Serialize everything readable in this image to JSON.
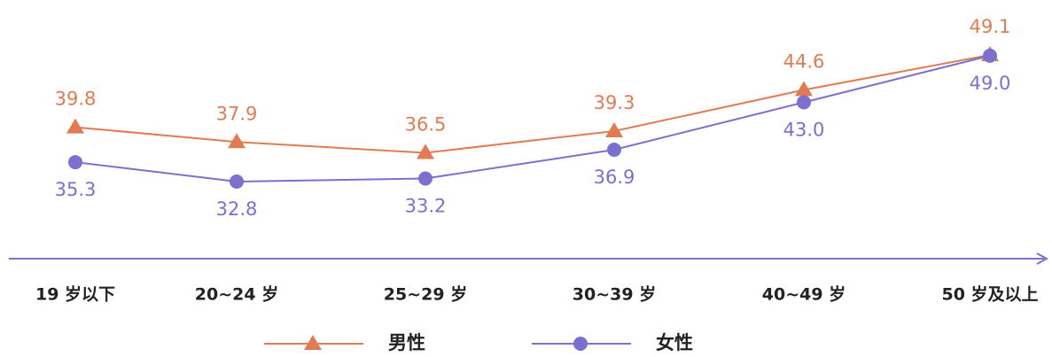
{
  "chart_data": {
    "type": "line",
    "categories": [
      "19 岁以下",
      "20~24 岁",
      "25~29 岁",
      "30~39 岁",
      "40~49 岁",
      "50 岁及以上"
    ],
    "series": [
      {
        "name": "男性",
        "color": "#e07b54",
        "marker": "triangle",
        "values": [
          39.8,
          37.9,
          36.5,
          39.3,
          44.6,
          49.1
        ],
        "value_labels": [
          "39.8",
          "37.9",
          "36.5",
          "39.3",
          "44.6",
          "49.1"
        ]
      },
      {
        "name": "女性",
        "color": "#7b6fd0",
        "marker": "circle",
        "values": [
          35.3,
          32.8,
          33.2,
          36.9,
          43.0,
          49.0
        ],
        "value_labels": [
          "35.3",
          "32.8",
          "33.2",
          "36.9",
          "43.0",
          "49.0"
        ]
      }
    ]
  }
}
